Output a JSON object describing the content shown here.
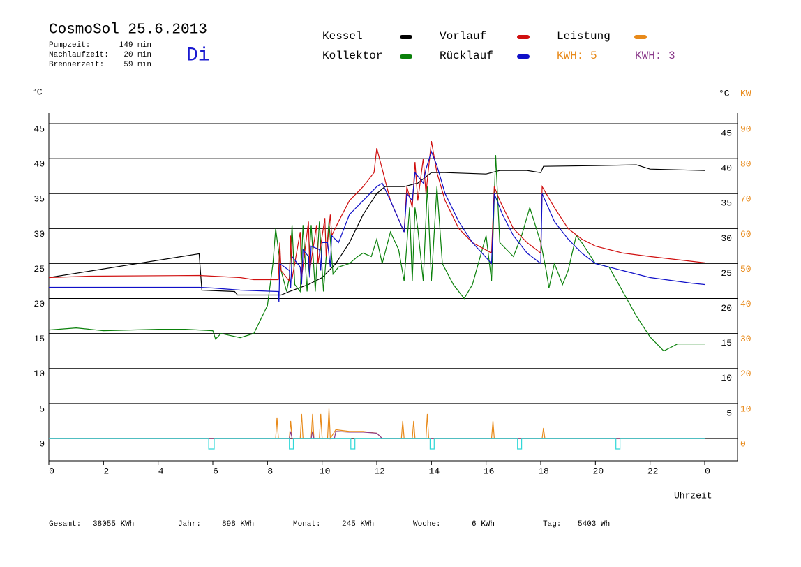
{
  "chart_data": {
    "type": "line",
    "title": "CosmoSol 25.6.2013",
    "info": [
      [
        "Pumpzeit:",
        "149 min"
      ],
      [
        "Nachlaufzeit:",
        "20 min"
      ],
      [
        "Brennerzeit:",
        "59 min"
      ]
    ],
    "weekday": "Di",
    "y_label": "°C",
    "y2_labels": [
      "°C",
      "KW"
    ],
    "x_label": "Uhrzeit",
    "xlim": [
      0,
      25.2
    ],
    "xticks": [
      0,
      2,
      4,
      6,
      8,
      10,
      12,
      14,
      16,
      18,
      20,
      22,
      {
        "value": 24,
        "label": "0"
      }
    ],
    "ylim": [
      -3.2,
      46.5
    ],
    "yticks": [
      0,
      5,
      10,
      15,
      20,
      25,
      30,
      35,
      40,
      45
    ],
    "y_right_ticks": [
      5,
      10,
      15,
      20,
      25,
      30,
      35,
      40,
      45
    ],
    "y2lim": [
      -6.4,
      93
    ],
    "y2ticks": [
      0,
      10,
      20,
      30,
      40,
      50,
      60,
      70,
      80,
      90
    ],
    "y2_color": "#e88a1a",
    "grid": true,
    "kwh": [
      {
        "label": "KWH: 5",
        "color": "#e88a1a"
      },
      {
        "label": "KWH: 3",
        "color": "#8b3a8b"
      }
    ],
    "series": [
      {
        "name": "Kessel",
        "color": "#000000",
        "x": [
          0,
          5.5,
          5.6,
          6.8,
          6.9,
          8.5,
          8.8,
          9.5,
          10,
          10.5,
          11,
          11.5,
          12,
          12.3,
          13,
          13.5,
          14,
          14.5,
          16,
          16.5,
          17.5,
          18,
          18.1,
          20,
          21.5,
          22,
          24
        ],
        "values": [
          23.0,
          26.4,
          21.2,
          21.0,
          20.5,
          20.5,
          21,
          22,
          23,
          25,
          28,
          32,
          35,
          36,
          36,
          36.5,
          38,
          38,
          37.8,
          38.3,
          38.3,
          38,
          38.9,
          39,
          39.1,
          38.5,
          38.3
        ]
      },
      {
        "name": "Kollektor",
        "color": "#0a800a",
        "x": [
          0,
          1,
          2,
          3,
          4,
          5,
          6,
          6.1,
          6.3,
          7,
          7.5,
          8,
          8.2,
          8.3,
          8.5,
          8.7,
          8.8,
          8.9,
          9,
          9.2,
          9.3,
          9.45,
          9.6,
          9.75,
          9.9,
          10.05,
          10.25,
          10.4,
          10.6,
          11,
          11.3,
          11.5,
          11.8,
          12,
          12.2,
          12.5,
          12.8,
          13,
          13.2,
          13.3,
          13.4,
          13.5,
          13.7,
          13.85,
          14,
          14.2,
          14.4,
          14.8,
          15.2,
          15.5,
          16,
          16.2,
          16.35,
          16.5,
          17,
          17.3,
          17.6,
          18,
          18.2,
          18.3,
          18.5,
          18.8,
          19,
          19.3,
          19.5,
          20,
          20.5,
          21,
          21.5,
          22,
          22.5,
          23,
          24
        ],
        "values": [
          15.5,
          15.8,
          15.4,
          15.5,
          15.6,
          15.6,
          15.4,
          14.2,
          15.0,
          14.4,
          15,
          19,
          25,
          30,
          24,
          21,
          23,
          30.5,
          22,
          21,
          30.5,
          21,
          30.5,
          21,
          31,
          21,
          31,
          23.5,
          24.5,
          25,
          26,
          26.5,
          26,
          28.5,
          25,
          29.5,
          27,
          22.5,
          33,
          22.5,
          33,
          30,
          22.5,
          36,
          22.5,
          36,
          25,
          22,
          20,
          22,
          29,
          22.5,
          40.5,
          28,
          26,
          29,
          33,
          28,
          24,
          21.5,
          25,
          22,
          24,
          29,
          28,
          25,
          24.5,
          21,
          17.5,
          14.5,
          12.5,
          13.5,
          13.5
        ]
      },
      {
        "name": "Vorlauf",
        "color": "#d01010",
        "x": [
          0,
          1.5,
          5.5,
          6,
          7,
          7.5,
          8.4,
          8.45,
          8.5,
          8.8,
          8.85,
          8.9,
          9.2,
          9.25,
          9.5,
          9.55,
          9.8,
          9.85,
          10.1,
          10.15,
          10.3,
          10.35,
          10.6,
          11,
          11.5,
          11.9,
          12,
          12.1,
          12.5,
          13,
          13.1,
          13.3,
          13.4,
          13.5,
          13.7,
          13.8,
          14,
          14.2,
          14.5,
          15,
          15.5,
          16.2,
          16.3,
          16.5,
          17,
          17.5,
          18,
          18.05,
          18.5,
          19,
          19.5,
          20,
          21,
          22,
          24
        ],
        "values": [
          23.0,
          23.2,
          23.3,
          23.2,
          23.0,
          22.7,
          22.7,
          28,
          24,
          22.5,
          29,
          22.8,
          29.5,
          23,
          31,
          24,
          30.5,
          25,
          31.5,
          26,
          32,
          29,
          31,
          34,
          36,
          38,
          41.5,
          40,
          34,
          29.5,
          36,
          33,
          39.5,
          34,
          40,
          35,
          42.5,
          38,
          34,
          30,
          28,
          26.5,
          36,
          34,
          30,
          28,
          26.5,
          36,
          33,
          30,
          28.5,
          27.5,
          26.5,
          26,
          25.1
        ]
      },
      {
        "name": "Rücklauf",
        "color": "#1010c8",
        "x": [
          0,
          5.5,
          6,
          7,
          8.4,
          8.42,
          8.45,
          8.8,
          8.85,
          8.9,
          9.2,
          9.25,
          9.3,
          9.5,
          9.55,
          9.6,
          9.9,
          9.95,
          10,
          10.2,
          10.3,
          10.35,
          10.6,
          11,
          11.5,
          12,
          12.2,
          12.5,
          13,
          13.1,
          13.3,
          13.4,
          13.7,
          13.8,
          14,
          14.2,
          14.5,
          15,
          15.5,
          16.2,
          16.3,
          16.6,
          17,
          17.5,
          18,
          18.05,
          18.5,
          19,
          19.5,
          20,
          21,
          22,
          23.5,
          24
        ],
        "values": [
          21.6,
          21.6,
          21.5,
          21.2,
          21.0,
          19.5,
          25,
          24,
          21.5,
          26,
          24.5,
          22,
          27,
          26,
          23,
          27.5,
          27,
          24,
          28,
          28,
          24.5,
          29,
          28,
          32,
          34,
          36,
          36.5,
          34,
          29.5,
          35,
          34,
          38,
          36.5,
          38.5,
          41,
          39,
          35,
          31,
          28,
          25,
          35,
          32,
          29,
          26.5,
          25,
          35,
          31,
          28.5,
          26.5,
          25,
          24,
          23,
          22.2,
          22.0
        ]
      },
      {
        "name": "Leistung",
        "color": "#e88a1a",
        "axis": "y2",
        "x": [
          0,
          8.3,
          8.35,
          8.4,
          8.8,
          8.85,
          8.9,
          9.2,
          9.25,
          9.3,
          9.6,
          9.65,
          9.7,
          9.9,
          9.95,
          10,
          10.2,
          10.25,
          10.3,
          10.5,
          11,
          11.5,
          12,
          12.2,
          12.9,
          12.95,
          13,
          13.3,
          13.35,
          13.4,
          13.8,
          13.85,
          13.9,
          16.2,
          16.25,
          16.3,
          18.05,
          18.1,
          18.15,
          24
        ],
        "values": [
          0,
          0,
          6,
          0,
          0,
          5,
          0,
          0,
          7,
          0,
          0,
          7,
          0,
          0,
          7,
          0,
          0,
          8.5,
          0,
          2.5,
          2,
          2,
          1.5,
          0,
          0,
          5,
          0,
          0,
          5,
          0,
          0,
          7,
          0,
          0,
          5,
          0,
          0,
          3,
          0,
          0
        ]
      },
      {
        "color": "#8b3a8b",
        "axis": "y2",
        "x": [
          0,
          8.8,
          8.85,
          8.9,
          9.6,
          9.65,
          9.7,
          10.45,
          10.5,
          11,
          11.5,
          12,
          12.2,
          24
        ],
        "values": [
          0,
          0,
          2,
          0,
          0,
          2,
          0,
          0,
          2,
          1.8,
          1.8,
          1.5,
          0,
          0
        ]
      },
      {
        "color": "#30d8d8",
        "x": [
          0,
          5.85,
          5.85,
          6.05,
          6.05,
          8.8,
          8.8,
          8.95,
          8.95,
          11.05,
          11.05,
          11.2,
          11.2,
          13.95,
          13.95,
          14.1,
          14.1,
          17.15,
          17.15,
          17.3,
          17.3,
          20.75,
          20.75,
          20.9,
          20.9,
          24
        ],
        "values": [
          0,
          0,
          -1.5,
          -1.5,
          0,
          0,
          -1.5,
          -1.5,
          0,
          0,
          -1.5,
          -1.5,
          0,
          0,
          -1.5,
          -1.5,
          0,
          0,
          -1.5,
          -1.5,
          0,
          0,
          -1.5,
          -1.5,
          0,
          0
        ]
      }
    ],
    "totals": [
      [
        "Gesamt:",
        "38055 KWh"
      ],
      [
        "Jahr:",
        "898 KWh"
      ],
      [
        "Monat:",
        "245 KWh"
      ],
      [
        "Woche:",
        "6 KWh"
      ],
      [
        "Tag:",
        "5403 Wh"
      ]
    ]
  }
}
